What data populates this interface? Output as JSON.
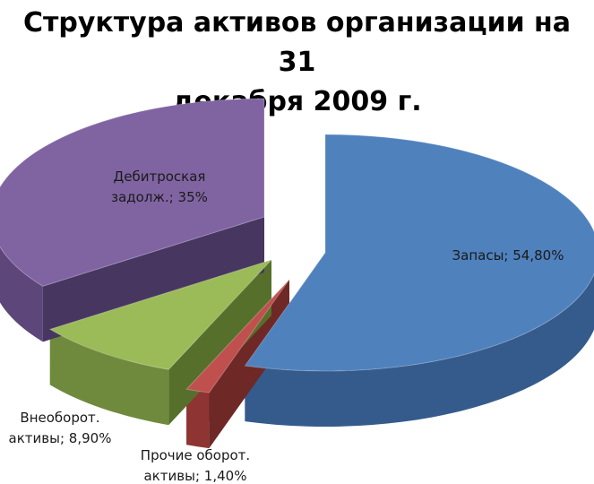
{
  "chart_data": {
    "type": "pie",
    "title_lines": [
      "Структура активов организации на 31",
      "декабря 2009 г."
    ],
    "slices": [
      {
        "label_lines": [
          "Запасы; 54,80%"
        ],
        "value": 54.8,
        "color": "#4f81bd",
        "side": "#355b8c",
        "dark": "#2a4a74"
      },
      {
        "label_lines": [
          "Прочие оборот.",
          "активы; 1,40%"
        ],
        "value": 1.4,
        "color": "#c0504d",
        "side": "#8e3533",
        "dark": "#6e2826"
      },
      {
        "label_lines": [
          "Внеоборот.",
          "активы; 8,90%"
        ],
        "value": 8.9,
        "color": "#9bbb59",
        "side": "#6f8a3c",
        "dark": "#56702c"
      },
      {
        "label_lines": [
          "Дебитроская",
          "задолж.; 35%"
        ],
        "value": 35,
        "color": "#8064a2",
        "side": "#5d4679",
        "dark": "#473660"
      }
    ],
    "style": "3d-exploded"
  }
}
